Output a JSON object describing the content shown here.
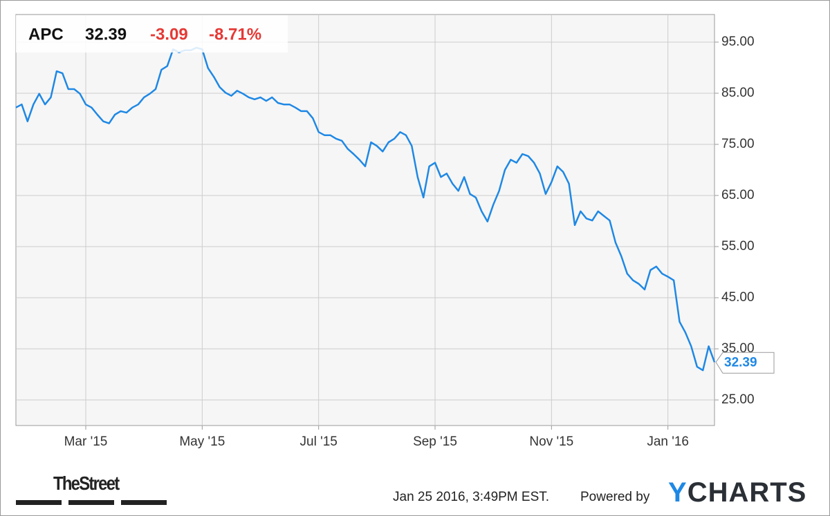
{
  "chart_data": {
    "type": "line",
    "symbol": "APC",
    "change": -3.09,
    "change_percent": "-8.71%",
    "categories": [
      null,
      null,
      null,
      null,
      null,
      null,
      null,
      null,
      null,
      null,
      null,
      null,
      "Mar '15",
      null,
      null,
      null,
      null,
      null,
      null,
      null,
      null,
      null,
      null,
      null,
      null,
      null,
      null,
      null,
      null,
      null,
      null,
      null,
      "May '15",
      null,
      null,
      null,
      null,
      null,
      null,
      null,
      null,
      null,
      null,
      null,
      null,
      null,
      null,
      null,
      null,
      null,
      null,
      null,
      "Jul '15",
      null,
      null,
      null,
      null,
      null,
      null,
      null,
      null,
      null,
      null,
      null,
      null,
      null,
      null,
      null,
      null,
      null,
      null,
      null,
      "Sep '15",
      null,
      null,
      null,
      null,
      null,
      null,
      null,
      null,
      null,
      null,
      null,
      null,
      null,
      null,
      null,
      null,
      null,
      null,
      null,
      "Nov '15",
      null,
      null,
      null,
      null,
      null,
      null,
      null,
      null,
      null,
      null,
      null,
      null,
      null,
      null,
      null,
      null,
      null,
      null,
      null,
      "Jan '16",
      null,
      null,
      null,
      null,
      null,
      null,
      null,
      null
    ],
    "values": [
      82.2,
      82.8,
      79.5,
      82.8,
      84.9,
      82.8,
      84.2,
      89.3,
      88.9,
      85.8,
      85.8,
      84.9,
      82.8,
      82.2,
      80.8,
      79.5,
      79.1,
      80.8,
      81.5,
      81.2,
      82.2,
      82.8,
      84.2,
      84.9,
      85.8,
      89.6,
      90.3,
      93.6,
      93.0,
      93.4,
      93.4,
      93.9,
      93.6,
      89.9,
      88.2,
      86.2,
      85.1,
      84.5,
      85.5,
      84.9,
      84.2,
      83.8,
      84.2,
      83.5,
      84.2,
      83.1,
      82.8,
      82.8,
      82.2,
      81.5,
      81.5,
      80.1,
      77.4,
      76.8,
      76.8,
      76.1,
      75.7,
      74.1,
      73.1,
      72.0,
      70.7,
      75.4,
      74.7,
      73.6,
      75.4,
      76.1,
      77.4,
      76.8,
      74.7,
      68.6,
      64.6,
      70.7,
      71.4,
      68.6,
      69.3,
      67.3,
      65.9,
      68.6,
      65.3,
      64.6,
      61.9,
      59.9,
      63.2,
      65.9,
      70.0,
      72.0,
      71.4,
      73.1,
      72.7,
      71.4,
      69.3,
      65.3,
      67.6,
      70.7,
      69.6,
      67.3,
      59.2,
      61.9,
      60.5,
      60.1,
      61.9,
      61.0,
      60.1,
      55.8,
      53.1,
      49.7,
      48.4,
      47.7,
      46.6,
      50.4,
      51.1,
      49.7,
      49.1,
      48.4,
      40.3,
      38.2,
      35.5,
      31.5,
      30.8,
      35.5,
      32.39
    ],
    "color": "#1e88e5",
    "ylim": [
      20,
      100.4
    ],
    "yticks": [
      {
        "value": 25,
        "label": "25.00"
      },
      {
        "value": 35,
        "label": "35.00"
      },
      {
        "value": 45,
        "label": "45.00"
      },
      {
        "value": 55,
        "label": "55.00"
      },
      {
        "value": 65,
        "label": "65.00"
      },
      {
        "value": 75,
        "label": "75.00"
      },
      {
        "value": 85,
        "label": "85.00"
      },
      {
        "value": 95,
        "label": "95.00"
      }
    ],
    "grid": true,
    "timestamp": "Jan 25 2016, 3:49PM EST.",
    "powered_by": "Powered by",
    "brand": "YCHARTS",
    "source_logo": "TheStreet"
  }
}
